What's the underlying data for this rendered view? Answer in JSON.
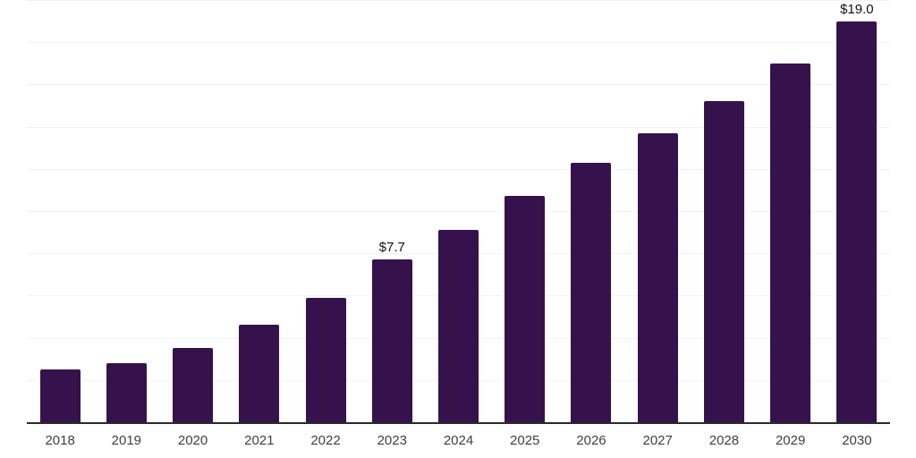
{
  "chart_data": {
    "type": "bar",
    "title": "",
    "xlabel": "",
    "ylabel": "",
    "categories": [
      "2018",
      "2019",
      "2020",
      "2021",
      "2022",
      "2023",
      "2024",
      "2025",
      "2026",
      "2027",
      "2028",
      "2029",
      "2030"
    ],
    "values": [
      2.5,
      2.8,
      3.5,
      4.6,
      5.9,
      7.7,
      9.1,
      10.7,
      12.3,
      13.7,
      15.2,
      17.0,
      19.0
    ],
    "point_labels": [
      "",
      "",
      "",
      "",
      "",
      "$7.7",
      "",
      "",
      "",
      "",
      "",
      "",
      "$19.0"
    ],
    "ylim": [
      0,
      20
    ],
    "grid_step": 2,
    "grid": "horizontal-only",
    "legend": "none",
    "colors": {
      "bar": "#35124b",
      "gridline": "#f2f2f2",
      "axis": "#2b2b2b",
      "value_label": "#111111",
      "tick_label": "#404040"
    }
  }
}
